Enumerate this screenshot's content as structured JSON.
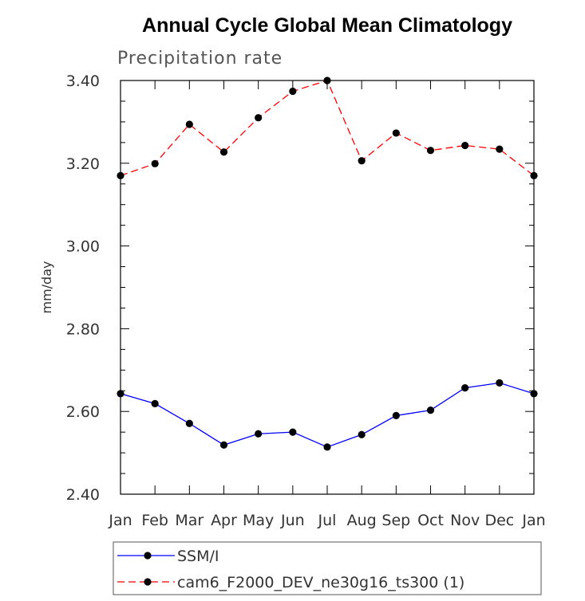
{
  "chart_data": {
    "type": "line",
    "title": "Annual Cycle Global Mean Climatology",
    "subtitle": "Precipitation rate",
    "xlabel": "",
    "ylabel": "mm/day",
    "categories": [
      "Jan",
      "Feb",
      "Mar",
      "Apr",
      "May",
      "Jun",
      "Jul",
      "Aug",
      "Sep",
      "Oct",
      "Nov",
      "Dec",
      "Jan"
    ],
    "ylim": [
      2.4,
      3.4
    ],
    "yticks": [
      "2.40",
      "2.60",
      "2.80",
      "3.00",
      "3.20",
      "3.40"
    ],
    "grid": false,
    "legend_position": "bottom",
    "series": [
      {
        "name": "SSM/I",
        "color": "#0000ff",
        "dash": "solid",
        "marker": "filled-circle",
        "values": [
          2.643,
          2.619,
          2.571,
          2.519,
          2.546,
          2.55,
          2.514,
          2.544,
          2.59,
          2.603,
          2.657,
          2.669,
          2.643
        ]
      },
      {
        "name": "cam6_F2000_DEV_ne30g16_ts300 (1)",
        "color": "#ff0000",
        "dash": "dashed",
        "marker": "filled-circle",
        "values": [
          3.17,
          3.199,
          3.294,
          3.227,
          3.31,
          3.374,
          3.4,
          3.206,
          3.273,
          3.231,
          3.243,
          3.234,
          3.17
        ]
      }
    ]
  }
}
